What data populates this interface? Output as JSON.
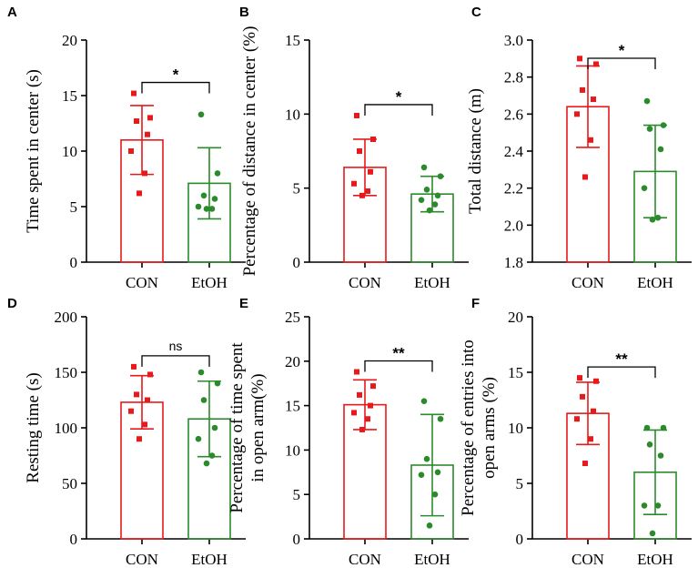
{
  "colors": {
    "con": "#e8191b",
    "etoh": "#2b8a2b",
    "axis": "#000000"
  },
  "chart_data": [
    {
      "panel": "A",
      "type": "bar",
      "ylabel": "Time spent in center (s)",
      "categories": [
        "CON",
        "EtOH"
      ],
      "ylim": [
        0,
        20
      ],
      "yticks": [
        0,
        5,
        10,
        15,
        20
      ],
      "means": [
        11.0,
        7.1
      ],
      "sd": [
        3.1,
        3.2
      ],
      "points": [
        [
          15.2,
          13.0,
          12.7,
          11.5,
          10.0,
          8.0,
          6.2
        ],
        [
          13.3,
          8.0,
          6.0,
          5.7,
          5.0,
          4.8,
          4.8
        ]
      ],
      "significance": "*"
    },
    {
      "panel": "B",
      "type": "bar",
      "ylabel": "Percentage of distance in center (%)",
      "categories": [
        "CON",
        "EtOH"
      ],
      "ylim": [
        0,
        15
      ],
      "yticks": [
        0,
        5,
        10,
        15
      ],
      "means": [
        6.4,
        4.6
      ],
      "sd": [
        1.9,
        1.2
      ],
      "points": [
        [
          9.9,
          8.3,
          7.5,
          6.1,
          5.3,
          4.8,
          4.5
        ],
        [
          6.4,
          5.8,
          4.9,
          4.5,
          4.2,
          3.9,
          3.5
        ]
      ],
      "significance": "*"
    },
    {
      "panel": "C",
      "type": "bar",
      "ylabel": "Total distance (m)",
      "categories": [
        "CON",
        "EtOH"
      ],
      "ylim": [
        1.8,
        3.0
      ],
      "yticks": [
        1.8,
        2.0,
        2.2,
        2.4,
        2.6,
        2.8,
        3.0
      ],
      "means": [
        2.64,
        2.29
      ],
      "sd": [
        0.22,
        0.25
      ],
      "points": [
        [
          2.9,
          2.87,
          2.73,
          2.68,
          2.6,
          2.46,
          2.26
        ],
        [
          2.67,
          2.54,
          2.52,
          2.41,
          2.2,
          2.04,
          2.03
        ]
      ],
      "significance": "*"
    },
    {
      "panel": "D",
      "type": "bar",
      "ylabel": "Resting time (s)",
      "categories": [
        "CON",
        "EtOH"
      ],
      "ylim": [
        0,
        200
      ],
      "yticks": [
        0,
        50,
        100,
        150,
        200
      ],
      "means": [
        123,
        108
      ],
      "sd": [
        24,
        34
      ],
      "points": [
        [
          155,
          148,
          130,
          125,
          115,
          103,
          90
        ],
        [
          150,
          140,
          125,
          100,
          90,
          75,
          68
        ]
      ],
      "significance": "ns"
    },
    {
      "panel": "E",
      "type": "bar",
      "ylabel": [
        "Percentage of time spent",
        "in open arm(%)"
      ],
      "categories": [
        "CON",
        "EtOH"
      ],
      "ylim": [
        0,
        25
      ],
      "yticks": [
        0,
        5,
        10,
        15,
        20,
        25
      ],
      "means": [
        15.1,
        8.3
      ],
      "sd": [
        2.8,
        5.7
      ],
      "points": [
        [
          18.8,
          17.2,
          16.2,
          15.0,
          14.2,
          13.5,
          12.3
        ],
        [
          15.5,
          13.5,
          9.0,
          7.5,
          7.2,
          5.0,
          1.5
        ]
      ],
      "significance": "**"
    },
    {
      "panel": "F",
      "type": "bar",
      "ylabel": [
        "Percentage of entries into",
        "open arms (%)"
      ],
      "categories": [
        "CON",
        "EtOH"
      ],
      "ylim": [
        0,
        20
      ],
      "yticks": [
        0,
        5,
        10,
        15,
        20
      ],
      "means": [
        11.3,
        6.0
      ],
      "sd": [
        2.8,
        3.8
      ],
      "points": [
        [
          14.5,
          14.2,
          12.8,
          11.5,
          10.8,
          9.0,
          6.8
        ],
        [
          10.0,
          10.0,
          8.5,
          7.5,
          3.0,
          3.0,
          0.5
        ]
      ],
      "significance": "**"
    }
  ]
}
